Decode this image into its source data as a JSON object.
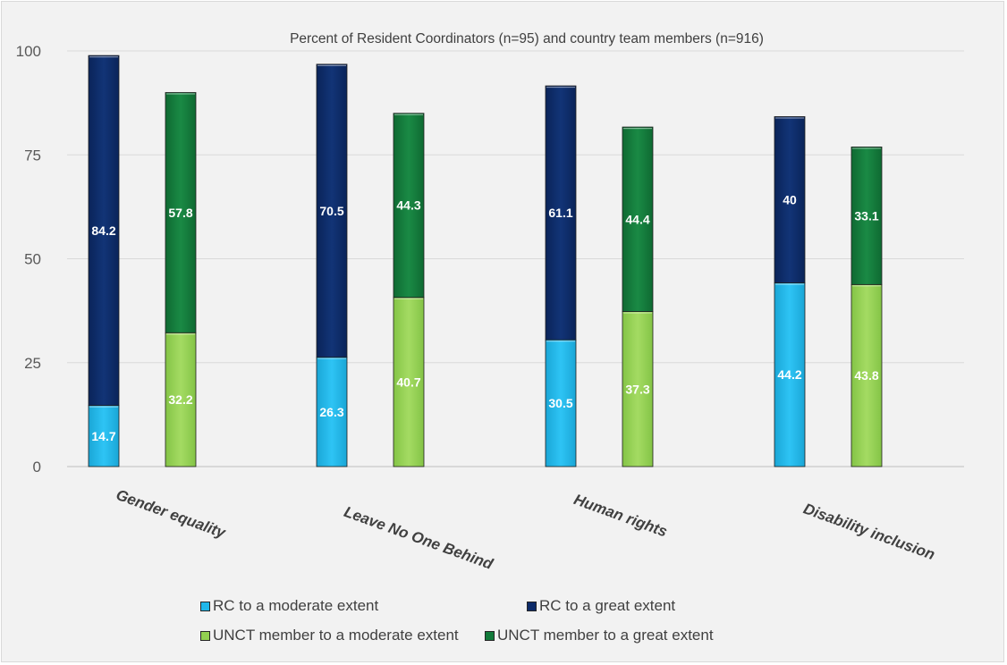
{
  "chart_data": {
    "type": "bar",
    "stacked": true,
    "title": "Percent of Resident Coordinators (n=95) and country team members (n=916)",
    "xlabel": "",
    "ylabel": "",
    "categories": [
      "Gender equality",
      "Leave No One Behind",
      "Human rights",
      "Disability inclusion"
    ],
    "yticks": [
      "0",
      "25",
      "50",
      "75",
      "100"
    ],
    "ylim": [
      0,
      100
    ],
    "grid": true,
    "legend_position": "bottom",
    "groups": [
      {
        "name": "RC",
        "series": [
          {
            "name": "RC to a moderate extent",
            "color": "#1fb7ea",
            "values": [
              14.7,
              26.3,
              30.5,
              44.2
            ],
            "labels": [
              "14.7",
              "26.3",
              "30.5",
              "44.2"
            ]
          },
          {
            "name": "RC to a great extent",
            "color": "#0d2b69",
            "values": [
              84.2,
              70.5,
              61.1,
              40
            ],
            "labels": [
              "84.2",
              "70.5",
              "61.1",
              "40"
            ]
          }
        ]
      },
      {
        "name": "UNCT",
        "series": [
          {
            "name": "UNCT member to a moderate extent",
            "color": "#92d050",
            "values": [
              32.2,
              40.7,
              37.3,
              43.8
            ],
            "labels": [
              "32.2",
              "40.7",
              "37.3",
              "43.8"
            ]
          },
          {
            "name": "UNCT member to a great extent",
            "color": "#127a3a",
            "values": [
              57.8,
              44.3,
              44.4,
              33.1
            ],
            "labels": [
              "57.8",
              "44.3",
              "44.4",
              "33.1"
            ]
          }
        ]
      }
    ]
  },
  "legend": [
    {
      "label": "RC to a moderate extent",
      "color": "#1fb7ea"
    },
    {
      "label": "RC to a great extent",
      "color": "#0d2b69"
    },
    {
      "label": "UNCT member to a moderate extent",
      "color": "#92d050"
    },
    {
      "label": "UNCT member to a great extent",
      "color": "#127a3a"
    }
  ]
}
